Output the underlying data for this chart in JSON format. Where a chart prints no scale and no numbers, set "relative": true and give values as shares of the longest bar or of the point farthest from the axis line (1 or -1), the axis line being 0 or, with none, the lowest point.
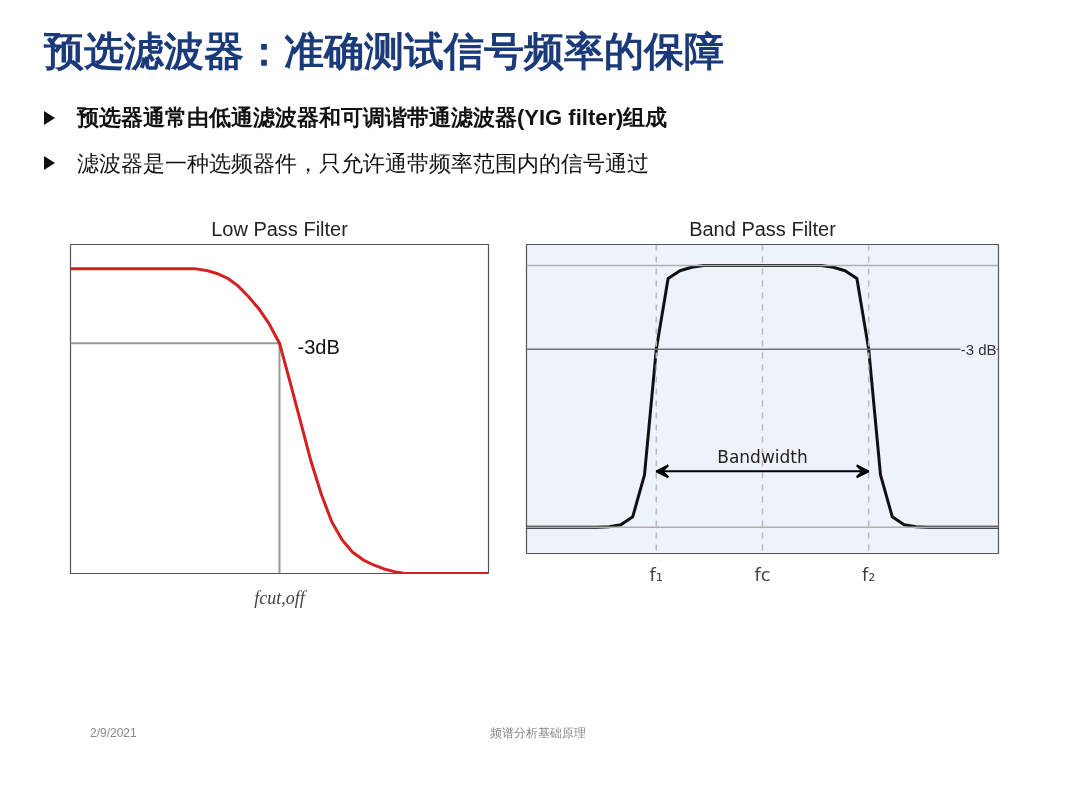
{
  "chart_data": [
    {
      "type": "other",
      "title": "预选滤波器：准确测试信号频率的保障",
      "annotations": [
        "预选器通常由低通滤波器和可调谐带通滤波器(YIG filter)组成",
        "滤波器是一种选频器件，只允许通带频率范围内的信号通过",
        "2/9/2021",
        "频谱分析基础原理"
      ]
    },
    {
      "type": "line",
      "title": "Low Pass Filter",
      "xlabel": "fcut,off",
      "relative": true,
      "categories": [
        null,
        null,
        null,
        null,
        null,
        null,
        null,
        null,
        null,
        null,
        null,
        null,
        null,
        null,
        null,
        null,
        null,
        null,
        null,
        null,
        null,
        null,
        null,
        null,
        null,
        null,
        null,
        null,
        null,
        null,
        null,
        null,
        null,
        null,
        null,
        null,
        null,
        null,
        null,
        null,
        null
      ],
      "series": [
        {
          "color": "#d42020",
          "values": [
            1,
            1,
            1,
            1,
            1,
            1,
            1,
            1,
            1,
            1,
            1,
            1,
            1,
            0.995,
            0.985,
            0.97,
            0.945,
            0.91,
            0.87,
            0.82,
            0.756,
            0.63,
            0.5,
            0.37,
            0.26,
            0.17,
            0.11,
            0.07,
            0.045,
            0.028,
            0.015,
            0.006,
            0,
            0,
            0,
            0,
            0,
            0,
            0,
            0,
            0
          ]
        }
      ],
      "annotations": [
        "-3dB"
      ]
    },
    {
      "type": "line",
      "title": "Band Pass Filter",
      "relative": true,
      "categories": [
        null,
        null,
        null,
        null,
        null,
        null,
        null,
        null,
        null,
        null,
        null,
        "f₁",
        null,
        null,
        null,
        null,
        null,
        null,
        null,
        null,
        "fc",
        null,
        null,
        null,
        null,
        null,
        null,
        null,
        null,
        "f₂",
        null,
        null,
        null,
        null,
        null,
        null,
        null,
        null,
        null,
        null,
        null
      ],
      "series": [
        {
          "color": "#111111",
          "values": [
            0,
            0,
            0,
            0,
            0,
            0,
            0,
            0.002,
            0.01,
            0.04,
            0.2,
            0.68,
            0.95,
            0.98,
            0.993,
            1,
            1,
            1,
            1,
            1,
            1,
            1,
            1,
            1,
            1,
            1,
            0.993,
            0.98,
            0.95,
            0.68,
            0.2,
            0.04,
            0.01,
            0.002,
            0,
            0,
            0,
            0,
            0,
            0,
            0
          ]
        }
      ],
      "ref_lines": [
        {
          "axis": "y",
          "value": 1,
          "label": null,
          "color": "#b0b0b0"
        },
        {
          "axis": "y",
          "value": 0.68,
          "label": "-3 dB",
          "color": "#707070"
        },
        {
          "axis": "y",
          "value": 0,
          "label": null,
          "color": "#b0b0b0"
        },
        {
          "axis": "x",
          "value": "f₁",
          "label": null,
          "color": "#b8b8b8",
          "line_style": "dashed"
        },
        {
          "axis": "x",
          "value": "fc",
          "label": null,
          "color": "#b8b8b8",
          "line_style": "dashed"
        },
        {
          "axis": "x",
          "value": "f₂",
          "label": null,
          "color": "#b8b8b8",
          "line_style": "dashed"
        }
      ],
      "annotations": [
        {
          "text": "Bandwidth",
          "x": "fc",
          "y": 0.214
        }
      ]
    }
  ]
}
